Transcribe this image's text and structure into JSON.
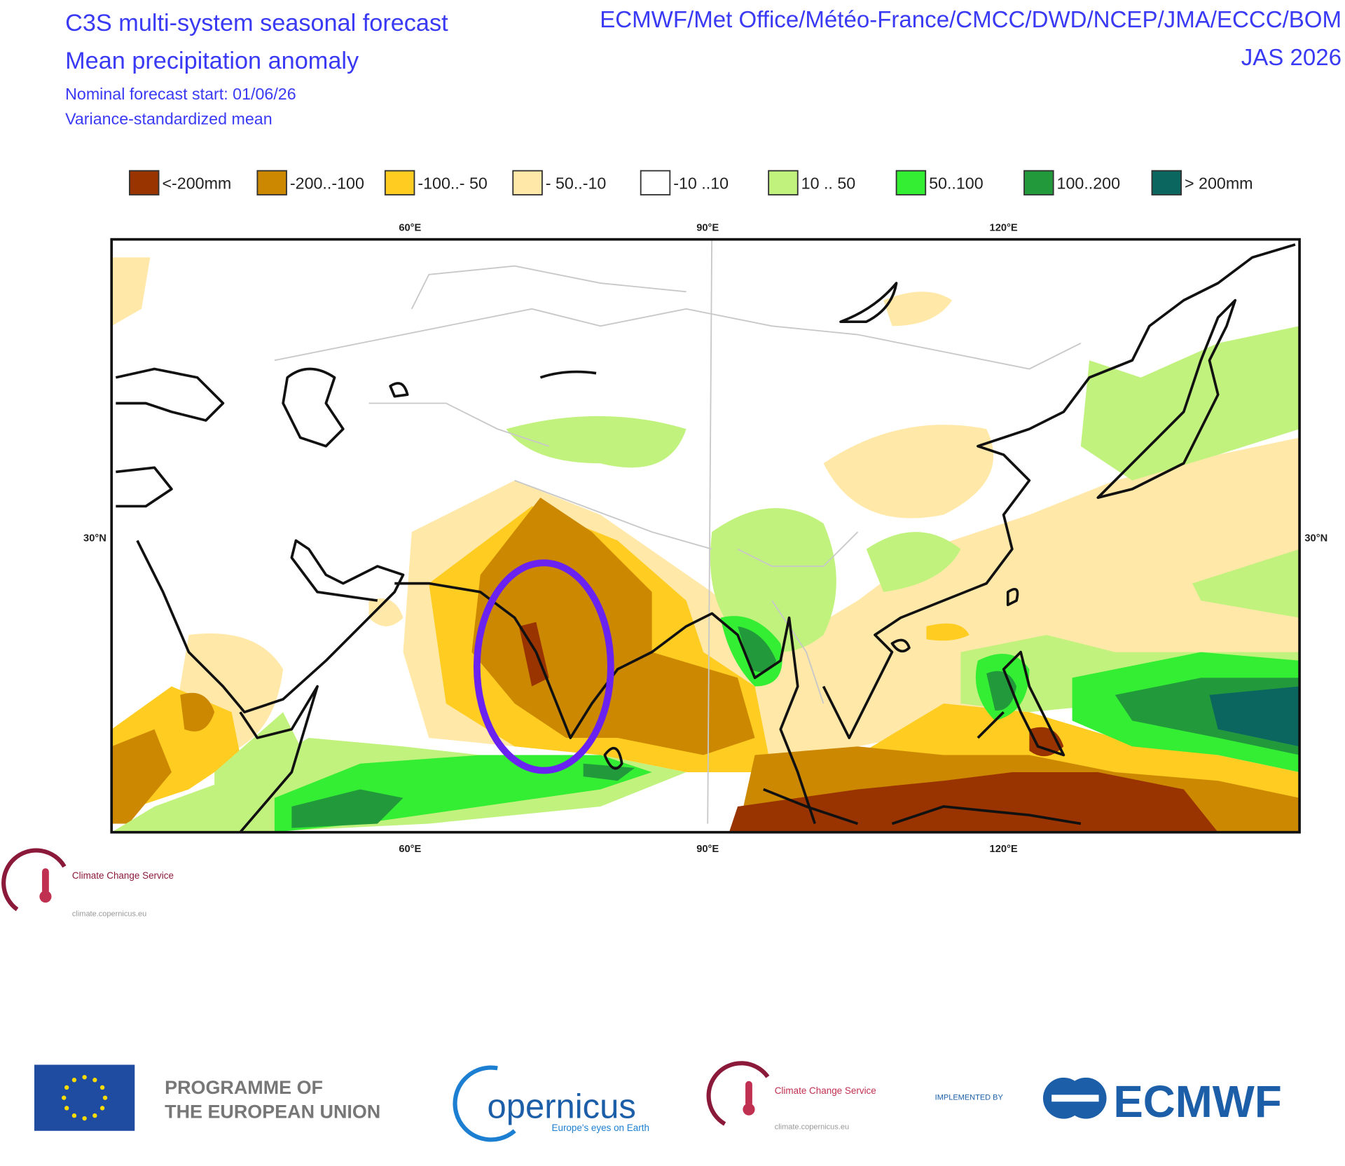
{
  "header": {
    "title": "C3S multi-system seasonal forecast",
    "subtitle": "Mean precipitation anomaly",
    "forecast_start": "Nominal forecast start: 01/06/26",
    "method": "Variance-standardized mean",
    "centres": "ECMWF/Met Office/Météo-France/CMCC/DWD/NCEP/JMA/ECCC/BOM",
    "period": "JAS 2026"
  },
  "legend": [
    {
      "label": "<-200mm",
      "color": "#993300"
    },
    {
      "label": "-200..-100",
      "color": "#cc8800"
    },
    {
      "label": "-100..- 50",
      "color": "#ffcc22"
    },
    {
      "label": "- 50..-10",
      "color": "#ffe8a8"
    },
    {
      "label": "-10 ..10",
      "color": "#ffffff"
    },
    {
      "label": "10 .. 50",
      "color": "#c2f27e"
    },
    {
      "label": "50..100",
      "color": "#33ee33"
    },
    {
      "label": "100..200",
      "color": "#229a3c"
    },
    {
      "label": "> 200mm",
      "color": "#0b6660"
    }
  ],
  "map": {
    "lon_labels": [
      "60°E",
      "90°E",
      "120°E"
    ],
    "lat_labels": [
      "30°N"
    ]
  },
  "logos": {
    "ccs_name": "Climate Change Service",
    "ccs_url": "climate.copernicus.eu",
    "eu_line1": "PROGRAMME OF",
    "eu_line2": "THE EUROPEAN UNION",
    "copernicus": "opernicus",
    "copernicus_tagline": "Europe's eyes on Earth",
    "implemented_by": "IMPLEMENTED BY",
    "ecmwf": "ECMWF"
  }
}
